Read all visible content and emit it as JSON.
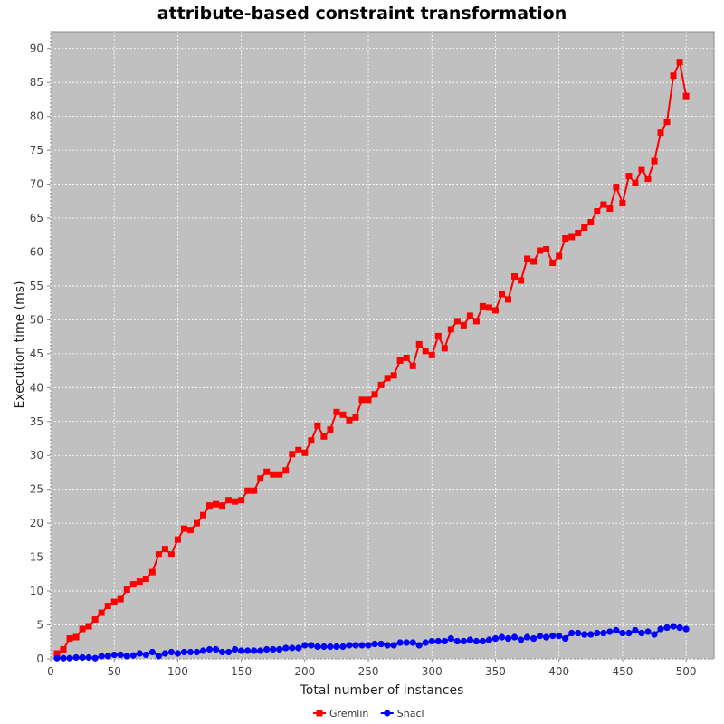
{
  "chart_data": {
    "type": "line",
    "title": "attribute-based constraint transformation",
    "xlabel": "Total number of instances",
    "ylabel": "Execution time (ms)",
    "xlim": [
      0,
      522
    ],
    "ylim": [
      0,
      92.5
    ],
    "xticks": [
      0,
      50,
      100,
      150,
      200,
      250,
      300,
      350,
      400,
      450,
      500
    ],
    "yticks": [
      0,
      5,
      10,
      15,
      20,
      25,
      30,
      35,
      40,
      45,
      50,
      55,
      60,
      65,
      70,
      75,
      80,
      85,
      90
    ],
    "grid": true,
    "legend_position": "bottom",
    "background_color": "#c0c0c0",
    "x": [
      5,
      10,
      15,
      20,
      25,
      30,
      35,
      40,
      45,
      50,
      55,
      60,
      65,
      70,
      75,
      80,
      85,
      90,
      95,
      100,
      105,
      110,
      115,
      120,
      125,
      130,
      135,
      140,
      145,
      150,
      155,
      160,
      165,
      170,
      175,
      180,
      185,
      190,
      195,
      200,
      205,
      210,
      215,
      220,
      225,
      230,
      235,
      240,
      245,
      250,
      255,
      260,
      265,
      270,
      275,
      280,
      285,
      290,
      295,
      300,
      305,
      310,
      315,
      320,
      325,
      330,
      335,
      340,
      345,
      350,
      355,
      360,
      365,
      370,
      375,
      380,
      385,
      390,
      395,
      400,
      405,
      410,
      415,
      420,
      425,
      430,
      435,
      440,
      445,
      450,
      455,
      460,
      465,
      470,
      475,
      480,
      485,
      490,
      495,
      500
    ],
    "series": [
      {
        "name": "Gremlin",
        "color": "#ff0000",
        "marker": "square",
        "values": [
          0.8,
          1.4,
          3.0,
          3.2,
          4.4,
          4.8,
          5.8,
          6.8,
          7.8,
          8.4,
          8.8,
          10.2,
          11.0,
          11.4,
          11.8,
          12.8,
          15.4,
          16.2,
          15.4,
          17.6,
          19.2,
          19.0,
          20.0,
          21.2,
          22.6,
          22.8,
          22.6,
          23.4,
          23.2,
          23.4,
          24.8,
          24.8,
          26.6,
          27.6,
          27.2,
          27.2,
          27.8,
          30.2,
          30.8,
          30.4,
          32.2,
          34.4,
          32.8,
          33.8,
          36.4,
          36.0,
          35.2,
          35.6,
          38.2,
          38.2,
          39.0,
          40.4,
          41.4,
          41.8,
          44.0,
          44.4,
          43.2,
          46.4,
          45.4,
          44.8,
          47.6,
          45.8,
          48.6,
          49.8,
          49.2,
          50.6,
          49.8,
          52.0,
          51.8,
          51.4,
          53.8,
          53.0,
          56.4,
          55.8,
          59.0,
          58.6,
          60.2,
          60.4,
          58.4,
          59.4,
          62.0,
          62.2,
          62.8,
          63.6,
          64.4,
          66.0,
          67.0,
          66.4,
          69.6,
          67.2,
          71.2,
          70.2,
          72.2,
          70.8,
          73.4,
          77.6,
          79.2,
          86.0,
          88.0,
          83.0
        ]
      },
      {
        "name": "Shacl",
        "color": "#0000ff",
        "marker": "circle",
        "values": [
          0.1,
          0.1,
          0.1,
          0.2,
          0.2,
          0.2,
          0.1,
          0.4,
          0.4,
          0.6,
          0.6,
          0.4,
          0.5,
          0.8,
          0.6,
          1.0,
          0.4,
          0.8,
          1.0,
          0.8,
          1.0,
          1.0,
          1.0,
          1.2,
          1.4,
          1.4,
          1.0,
          1.0,
          1.4,
          1.2,
          1.2,
          1.2,
          1.2,
          1.4,
          1.4,
          1.4,
          1.6,
          1.6,
          1.6,
          2.0,
          2.0,
          1.8,
          1.8,
          1.8,
          1.8,
          1.8,
          2.0,
          2.0,
          2.0,
          2.0,
          2.2,
          2.2,
          2.0,
          2.0,
          2.4,
          2.4,
          2.4,
          2.0,
          2.4,
          2.6,
          2.6,
          2.6,
          3.0,
          2.6,
          2.6,
          2.8,
          2.6,
          2.6,
          2.8,
          3.0,
          3.2,
          3.0,
          3.2,
          2.8,
          3.2,
          3.0,
          3.4,
          3.2,
          3.4,
          3.4,
          3.0,
          3.8,
          3.8,
          3.6,
          3.6,
          3.8,
          3.8,
          4.0,
          4.2,
          3.8,
          3.8,
          4.2,
          3.8,
          4.0,
          3.6,
          4.4,
          4.6,
          4.8,
          4.6,
          4.4
        ]
      }
    ]
  }
}
